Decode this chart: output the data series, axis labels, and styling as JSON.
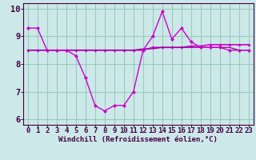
{
  "xlabel": "Windchill (Refroidissement éolien,°C)",
  "bg_color": "#cce8e8",
  "grid_color": "#99ccbb",
  "line_color": "#cc00cc",
  "line_color2": "#990099",
  "x": [
    0,
    1,
    2,
    3,
    4,
    5,
    6,
    7,
    8,
    9,
    10,
    11,
    12,
    13,
    14,
    15,
    16,
    17,
    18,
    19,
    20,
    21,
    22,
    23
  ],
  "line1": [
    9.3,
    9.3,
    8.5,
    8.5,
    8.5,
    8.3,
    7.5,
    6.5,
    6.3,
    6.5,
    6.5,
    7.0,
    8.5,
    9.0,
    9.9,
    8.9,
    9.3,
    8.8,
    8.6,
    8.6,
    8.6,
    8.5,
    8.5,
    8.5
  ],
  "line2": [
    8.5,
    8.5,
    8.5,
    8.5,
    8.5,
    8.5,
    8.5,
    8.5,
    8.5,
    8.5,
    8.5,
    8.5,
    8.5,
    8.6,
    8.6,
    8.6,
    8.6,
    8.65,
    8.65,
    8.7,
    8.7,
    8.7,
    8.7,
    8.7
  ],
  "line3": [
    8.5,
    8.5,
    8.5,
    8.5,
    8.5,
    8.5,
    8.5,
    8.5,
    8.5,
    8.5,
    8.5,
    8.5,
    8.55,
    8.55,
    8.6,
    8.6,
    8.6,
    8.6,
    8.6,
    8.6,
    8.6,
    8.6,
    8.5,
    8.5
  ],
  "ylim": [
    5.8,
    10.2
  ],
  "xlim": [
    -0.5,
    23.5
  ],
  "yticks": [
    6,
    7,
    8,
    9,
    10
  ],
  "xticks": [
    0,
    1,
    2,
    3,
    4,
    5,
    6,
    7,
    8,
    9,
    10,
    11,
    12,
    13,
    14,
    15,
    16,
    17,
    18,
    19,
    20,
    21,
    22,
    23
  ],
  "xlabel_fontsize": 6.5,
  "tick_fontsize": 6.5,
  "ytick_fontsize": 7.5
}
